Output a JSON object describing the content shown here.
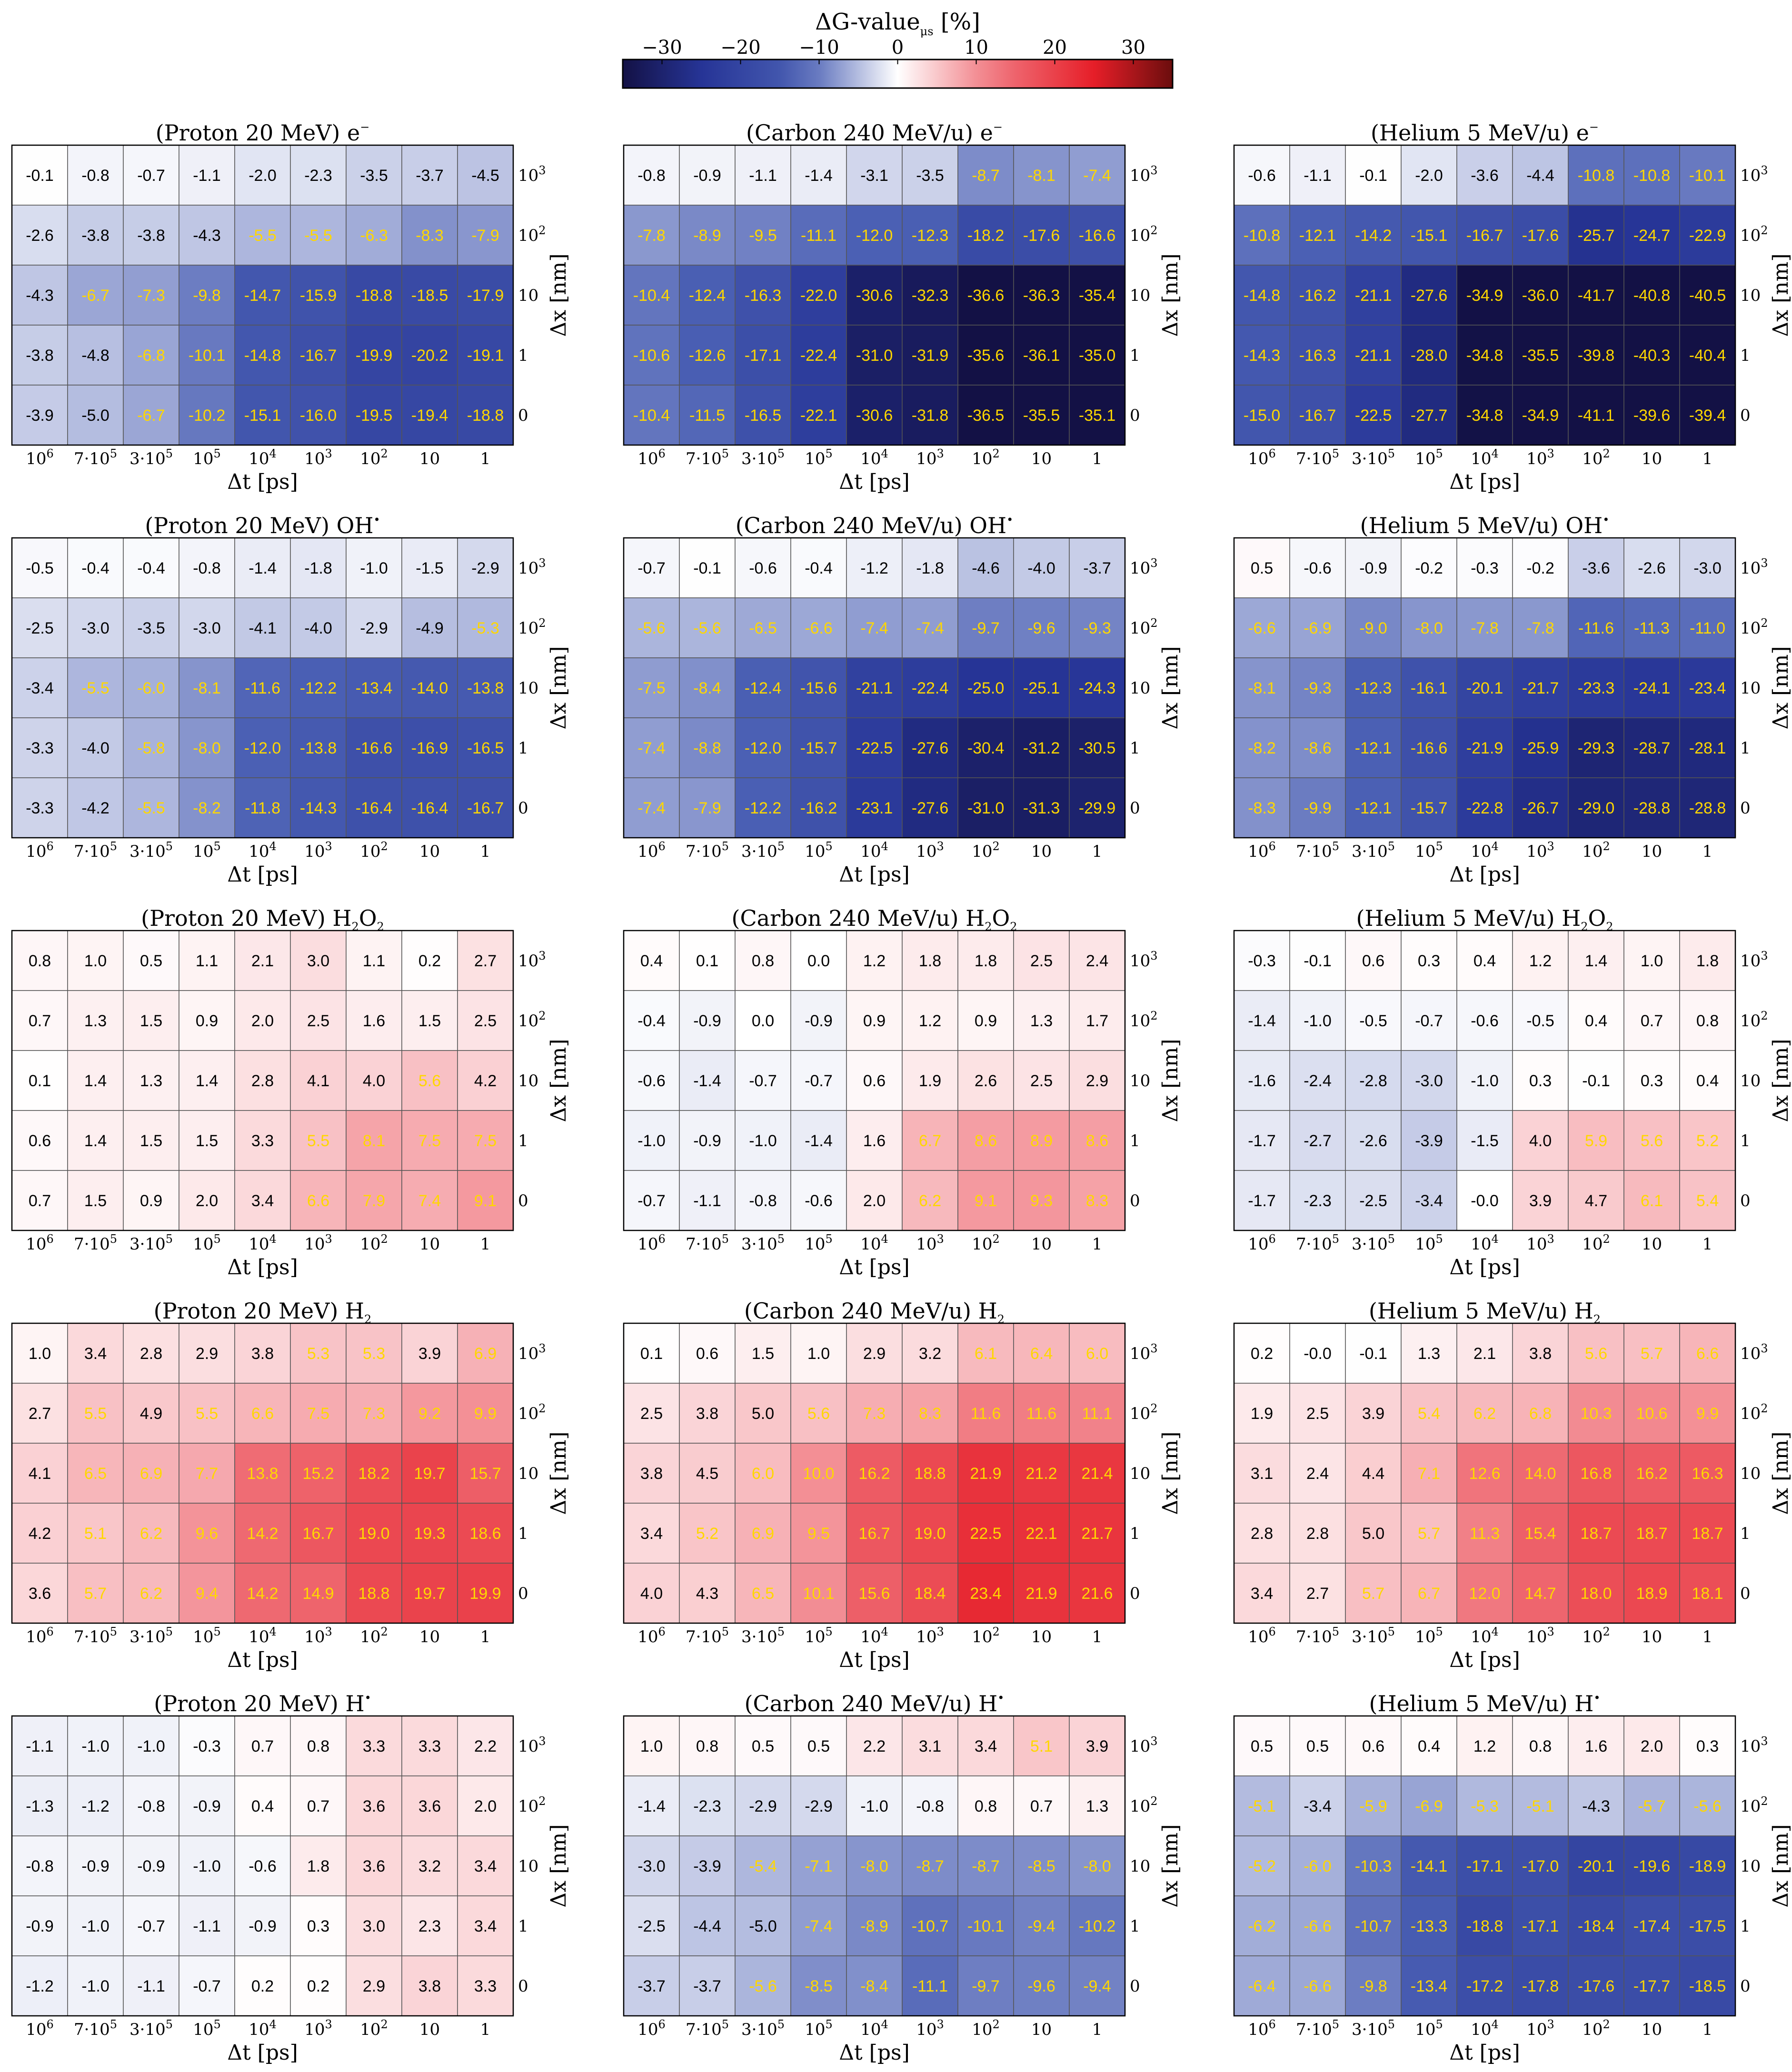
{
  "colorbar": {
    "label": "ΔG-value",
    "label_subscript": "μs",
    "label_unit": " [%]",
    "ticks": [
      "−30",
      "−20",
      "−10",
      "0",
      "10",
      "20",
      "30"
    ],
    "tick_values": [
      -30,
      -20,
      -10,
      0,
      10,
      20,
      30
    ],
    "range": [
      -35,
      35
    ],
    "colors": {
      "min": "#131145",
      "mid": "#ffffff",
      "max": "#6b0d0d"
    },
    "label_color_light": "#ffd700",
    "label_color_dark": "#000000"
  },
  "axes": {
    "xlabel": "Δt [ps]",
    "ylabel": "Δx [nm]",
    "x_ticks": [
      {
        "base": "10",
        "sup": "6"
      },
      {
        "base": "7·10",
        "sup": "5"
      },
      {
        "base": "3·10",
        "sup": "5"
      },
      {
        "base": "10",
        "sup": "5"
      },
      {
        "base": "10",
        "sup": "4"
      },
      {
        "base": "10",
        "sup": "3"
      },
      {
        "base": "10",
        "sup": "2"
      },
      {
        "base": "10",
        "sup": ""
      },
      {
        "base": "1",
        "sup": ""
      }
    ],
    "y_ticks": [
      {
        "base": "10",
        "sup": "3"
      },
      {
        "base": "10",
        "sup": "2"
      },
      {
        "base": "10",
        "sup": ""
      },
      {
        "base": "1",
        "sup": ""
      },
      {
        "base": "0",
        "sup": ""
      }
    ]
  },
  "chart_data": [
    {
      "type": "heatmap",
      "title": "(Proton 20 MeV) e",
      "title_sup": "−",
      "title_sub": "",
      "values": [
        [
          -0.1,
          -0.8,
          -0.7,
          -1.1,
          -2.0,
          -2.3,
          -3.5,
          -3.7,
          -4.5
        ],
        [
          -2.6,
          -3.8,
          -3.8,
          -4.3,
          -5.5,
          -5.5,
          -6.3,
          -8.3,
          -7.9
        ],
        [
          -4.3,
          -6.7,
          -7.3,
          -9.8,
          -14.7,
          -15.9,
          -18.8,
          -18.5,
          -17.9
        ],
        [
          -3.8,
          -4.8,
          -6.8,
          -10.1,
          -14.8,
          -16.7,
          -19.9,
          -20.2,
          -19.1
        ],
        [
          -3.9,
          -5.0,
          -6.7,
          -10.2,
          -15.1,
          -16.0,
          -19.5,
          -19.4,
          -18.8
        ]
      ]
    },
    {
      "type": "heatmap",
      "title": "(Carbon 240 MeV/u) e",
      "title_sup": "−",
      "title_sub": "",
      "values": [
        [
          -0.8,
          -0.9,
          -1.1,
          -1.4,
          -3.1,
          -3.5,
          -8.7,
          -8.1,
          -7.4
        ],
        [
          -7.8,
          -8.9,
          -9.5,
          -11.1,
          -12.0,
          -12.3,
          -18.2,
          -17.6,
          -16.6
        ],
        [
          -10.4,
          -12.4,
          -16.3,
          -22.0,
          -30.6,
          -32.3,
          -36.6,
          -36.3,
          -35.4
        ],
        [
          -10.6,
          -12.6,
          -17.1,
          -22.4,
          -31.0,
          -31.9,
          -35.6,
          -36.1,
          -35.0
        ],
        [
          -10.4,
          -11.5,
          -16.5,
          -22.1,
          -30.6,
          -31.8,
          -36.5,
          -35.5,
          -35.1
        ]
      ]
    },
    {
      "type": "heatmap",
      "title": "(Helium 5 MeV/u) e",
      "title_sup": "−",
      "title_sub": "",
      "values": [
        [
          -0.6,
          -1.1,
          -0.1,
          -2.0,
          -3.6,
          -4.4,
          -10.8,
          -10.8,
          -10.1
        ],
        [
          -10.8,
          -12.1,
          -14.2,
          -15.1,
          -16.7,
          -17.6,
          -25.7,
          -24.7,
          -22.9
        ],
        [
          -14.8,
          -16.2,
          -21.1,
          -27.6,
          -34.9,
          -36.0,
          -41.7,
          -40.8,
          -40.5
        ],
        [
          -14.3,
          -16.3,
          -21.1,
          -28.0,
          -34.8,
          -35.5,
          -39.8,
          -40.3,
          -40.4
        ],
        [
          -15.0,
          -16.7,
          -22.5,
          -27.7,
          -34.8,
          -34.9,
          -41.1,
          -39.6,
          -39.4
        ]
      ]
    },
    {
      "type": "heatmap",
      "title": "(Proton 20 MeV) OH",
      "title_sup": "•",
      "title_sub": "",
      "values": [
        [
          -0.5,
          -0.4,
          -0.4,
          -0.8,
          -1.4,
          -1.8,
          -1.0,
          -1.5,
          -2.9
        ],
        [
          -2.5,
          -3.0,
          -3.5,
          -3.0,
          -4.1,
          -4.0,
          -2.9,
          -4.9,
          -5.3
        ],
        [
          -3.4,
          -5.5,
          -6.0,
          -8.1,
          -11.6,
          -12.2,
          -13.4,
          -14.0,
          -13.8
        ],
        [
          -3.3,
          -4.0,
          -5.8,
          -8.0,
          -12.0,
          -13.8,
          -16.6,
          -16.9,
          -16.5
        ],
        [
          -3.3,
          -4.2,
          -5.5,
          -8.2,
          -11.8,
          -14.3,
          -16.4,
          -16.4,
          -16.7
        ]
      ]
    },
    {
      "type": "heatmap",
      "title": "(Carbon 240 MeV/u) OH",
      "title_sup": "•",
      "title_sub": "",
      "values": [
        [
          -0.7,
          -0.1,
          -0.6,
          -0.4,
          -1.2,
          -1.8,
          -4.6,
          -4.0,
          -3.7
        ],
        [
          -5.6,
          -5.6,
          -6.5,
          -6.6,
          -7.4,
          -7.4,
          -9.7,
          -9.6,
          -9.3
        ],
        [
          -7.5,
          -8.4,
          -12.4,
          -15.6,
          -21.1,
          -22.4,
          -25.0,
          -25.1,
          -24.3
        ],
        [
          -7.4,
          -8.8,
          -12.0,
          -15.7,
          -22.5,
          -27.6,
          -30.4,
          -31.2,
          -30.5
        ],
        [
          -7.4,
          -7.9,
          -12.2,
          -16.2,
          -23.1,
          -27.6,
          -31.0,
          -31.3,
          -29.9
        ]
      ]
    },
    {
      "type": "heatmap",
      "title": "(Helium 5 MeV/u) OH",
      "title_sup": "•",
      "title_sub": "",
      "values": [
        [
          0.5,
          -0.6,
          -0.9,
          -0.2,
          -0.3,
          -0.2,
          -3.6,
          -2.6,
          -3.0
        ],
        [
          -6.6,
          -6.9,
          -9.0,
          -8.0,
          -7.8,
          -7.8,
          -11.6,
          -11.3,
          -11.0
        ],
        [
          -8.1,
          -9.3,
          -12.3,
          -16.1,
          -20.1,
          -21.7,
          -23.3,
          -24.1,
          -23.4
        ],
        [
          -8.2,
          -8.6,
          -12.1,
          -16.6,
          -21.9,
          -25.9,
          -29.3,
          -28.7,
          -28.1
        ],
        [
          -8.3,
          -9.9,
          -12.1,
          -15.7,
          -22.8,
          -26.7,
          -29.0,
          -28.8,
          -28.8
        ]
      ]
    },
    {
      "type": "heatmap",
      "title": "(Proton 20 MeV) H",
      "title_sup": "",
      "title_sub": "2",
      "title_tail": "O",
      "title_tail_sub": "2",
      "values": [
        [
          0.8,
          1.0,
          0.5,
          1.1,
          2.1,
          3.0,
          1.1,
          0.2,
          2.7
        ],
        [
          0.7,
          1.3,
          1.5,
          0.9,
          2.0,
          2.5,
          1.6,
          1.5,
          2.5
        ],
        [
          0.1,
          1.4,
          1.3,
          1.4,
          2.8,
          4.1,
          4.0,
          5.6,
          4.2
        ],
        [
          0.6,
          1.4,
          1.5,
          1.5,
          3.3,
          5.5,
          8.1,
          7.5,
          7.5
        ],
        [
          0.7,
          1.5,
          0.9,
          2.0,
          3.4,
          6.6,
          7.9,
          7.4,
          9.1
        ]
      ]
    },
    {
      "type": "heatmap",
      "title": "(Carbon 240 MeV/u) H",
      "title_sup": "",
      "title_sub": "2",
      "title_tail": "O",
      "title_tail_sub": "2",
      "values": [
        [
          0.4,
          0.1,
          0.8,
          0.0,
          1.2,
          1.8,
          1.8,
          2.5,
          2.4
        ],
        [
          -0.4,
          -0.9,
          0.0,
          -0.9,
          0.9,
          1.2,
          0.9,
          1.3,
          1.7
        ],
        [
          -0.6,
          -1.4,
          -0.7,
          -0.7,
          0.6,
          1.9,
          2.6,
          2.5,
          2.9
        ],
        [
          -1.0,
          -0.9,
          -1.0,
          -1.4,
          1.6,
          6.7,
          8.6,
          8.9,
          8.6
        ],
        [
          -0.7,
          -1.1,
          -0.8,
          -0.6,
          2.0,
          6.2,
          9.1,
          9.3,
          8.3
        ]
      ]
    },
    {
      "type": "heatmap",
      "title": "(Helium 5 MeV/u) H",
      "title_sup": "",
      "title_sub": "2",
      "title_tail": "O",
      "title_tail_sub": "2",
      "values": [
        [
          -0.3,
          -0.1,
          0.6,
          0.3,
          0.4,
          1.2,
          1.4,
          1.0,
          1.8
        ],
        [
          -1.4,
          -1.0,
          -0.5,
          -0.7,
          -0.6,
          -0.5,
          0.4,
          0.7,
          0.8
        ],
        [
          -1.6,
          -2.4,
          -2.8,
          -3.0,
          -1.0,
          0.3,
          -0.1,
          0.3,
          0.4
        ],
        [
          -1.7,
          -2.7,
          -2.6,
          -3.9,
          -1.5,
          4.0,
          5.9,
          5.6,
          5.2
        ],
        [
          -1.7,
          -2.3,
          -2.5,
          -3.4,
          "-0.0",
          3.9,
          4.7,
          6.1,
          5.4
        ]
      ]
    },
    {
      "type": "heatmap",
      "title": "(Proton 20 MeV) H",
      "title_sup": "",
      "title_sub": "2",
      "values": [
        [
          1.0,
          3.4,
          2.8,
          2.9,
          3.8,
          5.3,
          5.3,
          3.9,
          6.9
        ],
        [
          2.7,
          5.5,
          4.9,
          5.5,
          6.6,
          7.5,
          7.3,
          9.2,
          9.9
        ],
        [
          4.1,
          6.5,
          6.9,
          7.7,
          13.8,
          15.2,
          18.2,
          19.7,
          15.7
        ],
        [
          4.2,
          5.1,
          6.2,
          9.6,
          14.2,
          16.7,
          19.0,
          19.3,
          18.6
        ],
        [
          3.6,
          5.7,
          6.2,
          9.4,
          14.2,
          14.9,
          18.8,
          19.7,
          19.9
        ]
      ]
    },
    {
      "type": "heatmap",
      "title": "(Carbon 240 MeV/u) H",
      "title_sup": "",
      "title_sub": "2",
      "values": [
        [
          0.1,
          0.6,
          1.5,
          1.0,
          2.9,
          3.2,
          6.1,
          6.4,
          6.0
        ],
        [
          2.5,
          3.8,
          5.0,
          5.6,
          7.3,
          8.3,
          11.6,
          11.6,
          11.1
        ],
        [
          3.8,
          4.5,
          6.0,
          10.0,
          16.2,
          18.8,
          21.9,
          21.2,
          21.4
        ],
        [
          3.4,
          5.2,
          6.9,
          9.5,
          16.7,
          19.0,
          22.5,
          22.1,
          21.7
        ],
        [
          4.0,
          4.3,
          6.5,
          10.1,
          15.6,
          18.4,
          23.4,
          21.9,
          21.6
        ]
      ]
    },
    {
      "type": "heatmap",
      "title": "(Helium 5 MeV/u) H",
      "title_sup": "",
      "title_sub": "2",
      "values": [
        [
          0.2,
          "-0.0",
          -0.1,
          1.3,
          2.1,
          3.8,
          5.6,
          5.7,
          6.6
        ],
        [
          1.9,
          2.5,
          3.9,
          5.4,
          6.2,
          6.8,
          10.3,
          10.6,
          9.9
        ],
        [
          3.1,
          2.4,
          4.4,
          7.1,
          12.6,
          14.0,
          16.8,
          16.2,
          16.3
        ],
        [
          2.8,
          2.8,
          5.0,
          5.7,
          11.3,
          15.4,
          18.7,
          18.7,
          18.7
        ],
        [
          3.4,
          2.7,
          5.7,
          6.7,
          12.0,
          14.7,
          18.0,
          18.9,
          18.1
        ]
      ]
    },
    {
      "type": "heatmap",
      "title": "(Proton 20 MeV) H",
      "title_sup": "•",
      "title_sub": "",
      "values": [
        [
          -1.1,
          -1.0,
          -1.0,
          -0.3,
          0.7,
          0.8,
          3.3,
          3.3,
          2.2
        ],
        [
          -1.3,
          -1.2,
          -0.8,
          -0.9,
          0.4,
          0.7,
          3.6,
          3.6,
          2.0
        ],
        [
          -0.8,
          -0.9,
          -0.9,
          -1.0,
          -0.6,
          1.8,
          3.6,
          3.2,
          3.4
        ],
        [
          -0.9,
          -1.0,
          -0.7,
          -1.1,
          -0.9,
          0.3,
          3.0,
          2.3,
          3.4
        ],
        [
          -1.2,
          -1.0,
          -1.1,
          -0.7,
          0.2,
          0.2,
          2.9,
          3.8,
          3.3
        ]
      ]
    },
    {
      "type": "heatmap",
      "title": "(Carbon 240 MeV/u) H",
      "title_sup": "•",
      "title_sub": "",
      "values": [
        [
          1.0,
          0.8,
          0.5,
          0.5,
          2.2,
          3.1,
          3.4,
          5.1,
          3.9
        ],
        [
          -1.4,
          -2.3,
          -2.9,
          -2.9,
          -1.0,
          -0.8,
          0.8,
          0.7,
          1.3
        ],
        [
          -3.0,
          -3.9,
          -5.4,
          -7.1,
          -8.0,
          -8.7,
          -8.7,
          -8.5,
          -8.0
        ],
        [
          -2.5,
          -4.4,
          -5.0,
          -7.4,
          -8.9,
          -10.7,
          -10.1,
          -9.4,
          -10.2
        ],
        [
          -3.7,
          -3.7,
          -5.6,
          -8.5,
          -8.4,
          -11.1,
          -9.7,
          -9.6,
          -9.4
        ]
      ]
    },
    {
      "type": "heatmap",
      "title": "(Helium 5 MeV/u) H",
      "title_sup": "•",
      "title_sub": "",
      "values": [
        [
          0.5,
          0.5,
          0.6,
          0.4,
          1.2,
          0.8,
          1.6,
          2.0,
          0.3
        ],
        [
          -5.1,
          -3.4,
          -5.9,
          -6.9,
          -5.3,
          -5.1,
          -4.3,
          -5.7,
          -5.6
        ],
        [
          -5.2,
          -6.0,
          -10.3,
          -14.1,
          -17.1,
          -17.0,
          -20.1,
          -19.6,
          -18.9
        ],
        [
          -6.2,
          -6.6,
          -10.7,
          -13.3,
          -18.8,
          -17.1,
          -18.4,
          -17.4,
          -17.5
        ],
        [
          -6.4,
          -6.6,
          -9.8,
          -13.4,
          -17.2,
          -17.8,
          -17.6,
          -17.7,
          -18.5
        ]
      ]
    }
  ]
}
